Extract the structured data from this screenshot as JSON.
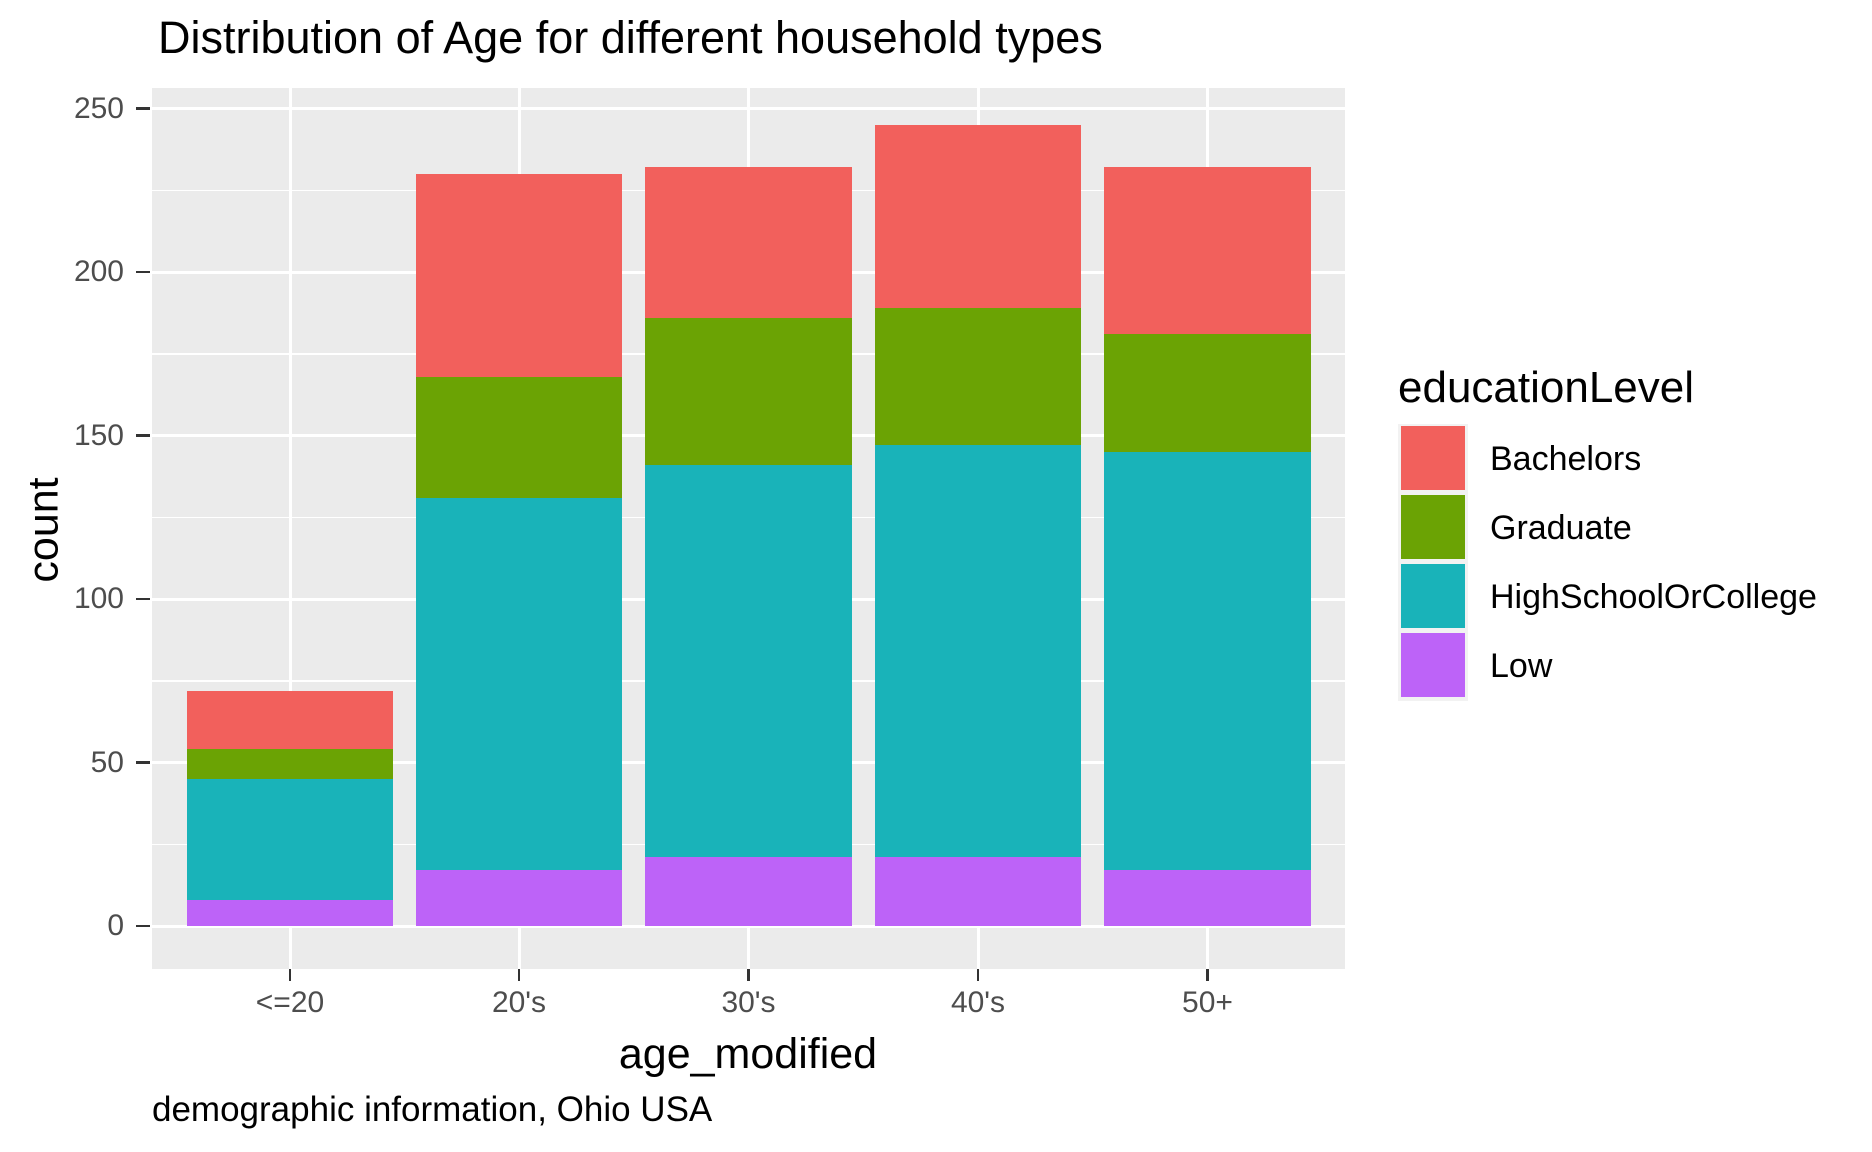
{
  "title": "Distribution of Age for different household types",
  "caption": "demographic information, Ohio USA",
  "axes": {
    "x_title": "age_modified",
    "y_title": "count"
  },
  "legend": {
    "title": "educationLevel",
    "items": [
      {
        "label": "Bachelors",
        "color": "#F2605C"
      },
      {
        "label": "Graduate",
        "color": "#6BA304"
      },
      {
        "label": "HighSchoolOrCollege",
        "color": "#19B3B9"
      },
      {
        "label": "Low",
        "color": "#BD63F8"
      }
    ]
  },
  "chart_data": {
    "type": "bar",
    "stacked": true,
    "title": "Distribution of Age for different household types",
    "xlabel": "age_modified",
    "ylabel": "count",
    "caption": "demographic information, Ohio USA",
    "categories": [
      "<=20",
      "20's",
      "30's",
      "40's",
      "50+"
    ],
    "series": [
      {
        "name": "Bachelors",
        "color": "#F2605C",
        "values": [
          18,
          62,
          46,
          56,
          51
        ]
      },
      {
        "name": "Graduate",
        "color": "#6BA304",
        "values": [
          9,
          37,
          45,
          42,
          36
        ]
      },
      {
        "name": "HighSchoolOrCollege",
        "color": "#19B3B9",
        "values": [
          37,
          114,
          120,
          126,
          128
        ]
      },
      {
        "name": "Low",
        "color": "#BD63F8",
        "values": [
          8,
          17,
          21,
          21,
          17
        ]
      }
    ],
    "stack_order_bottom_to_top": [
      "Low",
      "HighSchoolOrCollege",
      "Graduate",
      "Bachelors"
    ],
    "stack_totals": [
      72,
      230,
      232,
      245,
      232
    ],
    "y_ticks": [
      0,
      50,
      100,
      150,
      200,
      250
    ],
    "y_minor_ticks": [
      25,
      75,
      125,
      175,
      225
    ],
    "ylim": [
      0,
      257
    ],
    "grid": true,
    "legend_title": "educationLevel",
    "legend_position": "right",
    "panel_background": "#EBEBEB",
    "gridline_color": "#FFFFFF",
    "tick_label_color": "#4D4D4D",
    "tick_mark_color": "#333333",
    "text_color": "#000000"
  }
}
